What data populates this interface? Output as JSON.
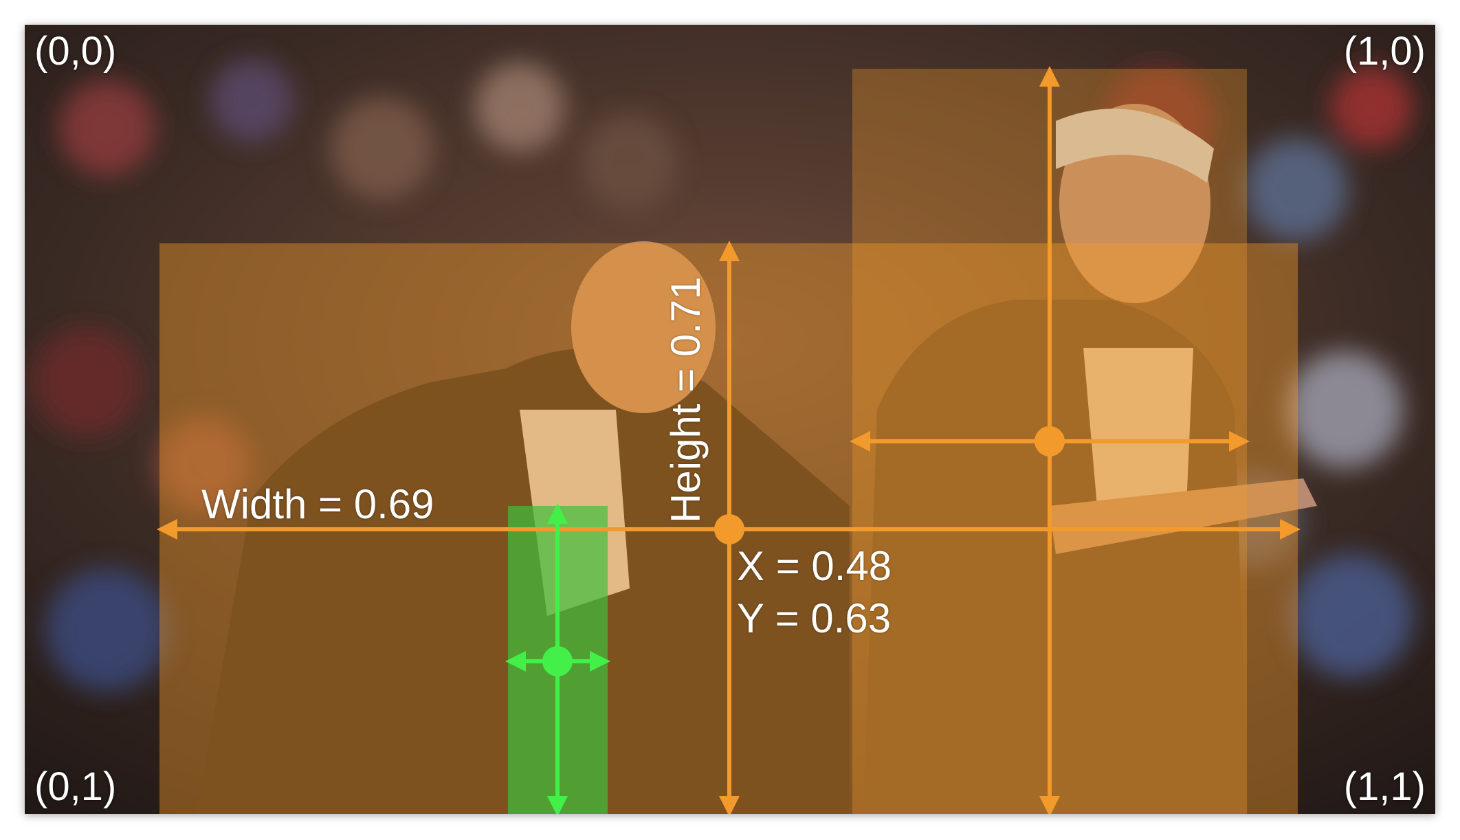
{
  "corners": {
    "top_left": "(0,0)",
    "top_right": "(1,0)",
    "bottom_left": "(0,1)",
    "bottom_right": "(1,1)"
  },
  "annotations": {
    "width": "Width = 0.69",
    "height": "Height = 0.71",
    "x": "X = 0.48",
    "y": "Y = 0.63"
  },
  "colors": {
    "box_orange": "#f39a2c",
    "box_green": "#43d64a",
    "background_dark": "#2b1f1a"
  }
}
